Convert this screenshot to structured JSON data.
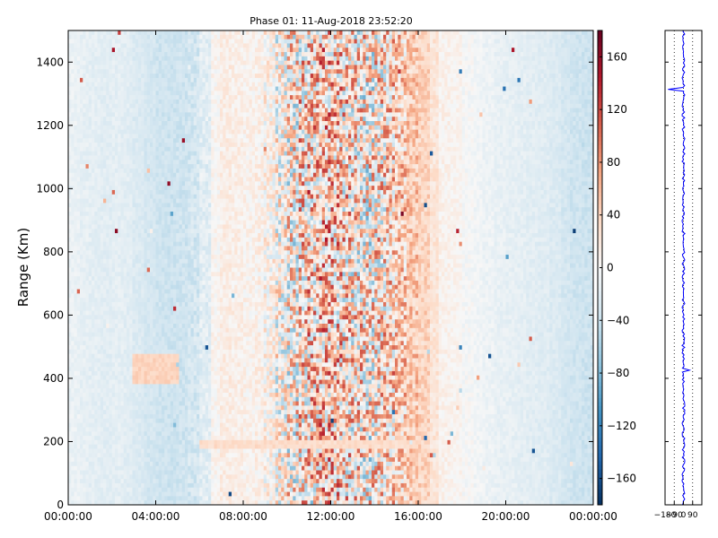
{
  "chart_data": [
    {
      "type": "heatmap",
      "title": "Phase 01: 11-Aug-2018 23:52:20",
      "ylabel": "Range (Km)",
      "xlabel": "",
      "x_tick_labels": [
        "00:00:00",
        "04:00:00",
        "08:00:00",
        "12:00:00",
        "16:00:00",
        "20:00:00",
        "00:00:00"
      ],
      "x_ticks_hours": [
        0,
        4,
        8,
        12,
        16,
        20,
        24
      ],
      "xlim_hours": [
        0,
        24
      ],
      "y_ticks": [
        0,
        200,
        400,
        600,
        800,
        1000,
        1200,
        1400
      ],
      "ylim": [
        0,
        1500
      ],
      "colormap": "RdBu_r",
      "colorbar": {
        "ticks": [
          160,
          120,
          80,
          40,
          0,
          -40,
          -80,
          -120,
          -160
        ],
        "tick_labels": [
          "160",
          "120",
          "80",
          "40",
          "0",
          "−40",
          "−80",
          "−120",
          "−160"
        ],
        "range": [
          -180,
          180
        ]
      },
      "column_means": [
        -12,
        -16,
        -18,
        -20,
        -18,
        -20,
        -26,
        -32,
        -36,
        -38,
        -36,
        -32,
        -20,
        4,
        14,
        12,
        8,
        10,
        6,
        0,
        10,
        24,
        34,
        44,
        34,
        24,
        18,
        10,
        20,
        32,
        40,
        48,
        40,
        24,
        8,
        6,
        -2,
        -6,
        -10,
        -14,
        -16,
        -18,
        -20,
        -22,
        -26,
        -32,
        -36,
        -38
      ],
      "column_noise": [
        8,
        8,
        8,
        8,
        8,
        8,
        8,
        8,
        8,
        8,
        10,
        14,
        16,
        14,
        14,
        14,
        16,
        20,
        40,
        70,
        95,
        100,
        100,
        100,
        100,
        100,
        100,
        100,
        95,
        80,
        60,
        35,
        20,
        14,
        12,
        10,
        10,
        8,
        8,
        8,
        8,
        8,
        8,
        8,
        8,
        8,
        8,
        8
      ],
      "features": {
        "band_200km_hours": [
          6,
          16
        ],
        "band_200km_range_km": [
          175,
          205
        ],
        "band_200km_value": 32,
        "bump_400km_hours": [
          3,
          5
        ],
        "bump_400km_value": 40
      }
    },
    {
      "type": "line",
      "xlim": [
        -180,
        180
      ],
      "x_ticks": [
        -180,
        -90,
        0,
        90
      ],
      "x_tick_labels": [
        "−180",
        "−90",
        "0",
        "90"
      ],
      "ylim": [
        0,
        1500
      ],
      "y_ticks": [
        200,
        400,
        600,
        800,
        1000,
        1200,
        1400
      ],
      "grid_x": [
        -90,
        0,
        90
      ],
      "series_color": "#0000ff",
      "baseline_phase": 0,
      "phase_spikes": [
        {
          "range": 1315,
          "value": -150
        },
        {
          "range": 425,
          "value": 60
        }
      ]
    }
  ]
}
